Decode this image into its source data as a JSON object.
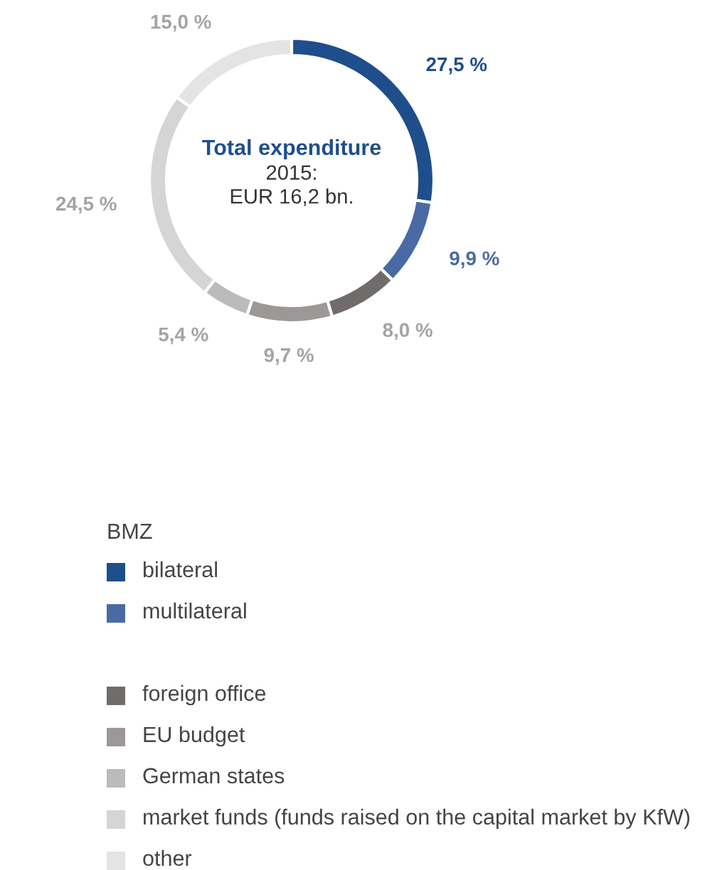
{
  "chart_data": {
    "type": "donut",
    "title": "Total expenditure",
    "subtitle": "2015:\nEUR 16,2 bn.",
    "legend_title": "BMZ",
    "legend": "bottom",
    "categories": [
      "bilateral",
      "multilateral",
      "foreign office",
      "EU budget",
      "German states",
      "market funds (funds raised on the capital market by KfW)",
      "other"
    ],
    "values": [
      27.5,
      9.9,
      8.0,
      9.7,
      5.4,
      24.5,
      15.0
    ],
    "value_labels": [
      "27,5 %",
      "9,9 %",
      "8,0 %",
      "9,7 %",
      "5,4 %",
      "24,5 %",
      "15,0 %"
    ],
    "colors": [
      "#1f4e8c",
      "#4a6aa5",
      "#6f6c6b",
      "#9c9898",
      "#bdbaba",
      "#d6d5d5",
      "#e4e4e4"
    ]
  }
}
